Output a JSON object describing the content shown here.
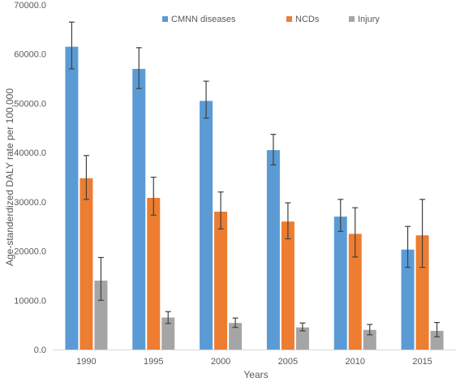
{
  "chart_data": {
    "type": "bar",
    "title": "",
    "xlabel": "Years",
    "ylabel": "Age-standerdized DALY rate per 100,000",
    "categories": [
      "1990",
      "1995",
      "2000",
      "2005",
      "2010",
      "2015"
    ],
    "ylim": [
      0,
      70000
    ],
    "yticks": [
      0,
      10000,
      20000,
      30000,
      40000,
      50000,
      60000,
      70000
    ],
    "ytick_labels": [
      "0.0",
      "10000.0",
      "20000.0",
      "30000.0",
      "40000.0",
      "50000.0",
      "60000.0",
      "70000.0"
    ],
    "grid": false,
    "legend_position": "top",
    "series": [
      {
        "name": "CMNN diseases",
        "color": "#5B9BD5",
        "values": [
          61500,
          57000,
          50500,
          40500,
          27000,
          20300
        ],
        "err_low": [
          57000,
          53000,
          47000,
          37500,
          24000,
          16700
        ],
        "err_high": [
          66500,
          61300,
          54500,
          43700,
          30500,
          25000
        ]
      },
      {
        "name": "NCDs",
        "color": "#ED7D31",
        "values": [
          34800,
          30800,
          28000,
          26000,
          23500,
          23200
        ],
        "err_low": [
          30500,
          27300,
          24500,
          22500,
          18800,
          16700
        ],
        "err_high": [
          39400,
          35000,
          32000,
          29800,
          28800,
          30500
        ]
      },
      {
        "name": "Injury",
        "color": "#A5A5A5",
        "values": [
          14000,
          6500,
          5400,
          4500,
          4000,
          3800
        ],
        "err_low": [
          10000,
          5300,
          4500,
          3800,
          3000,
          2600
        ],
        "err_high": [
          18700,
          7700,
          6400,
          5400,
          5100,
          5500
        ]
      }
    ]
  }
}
